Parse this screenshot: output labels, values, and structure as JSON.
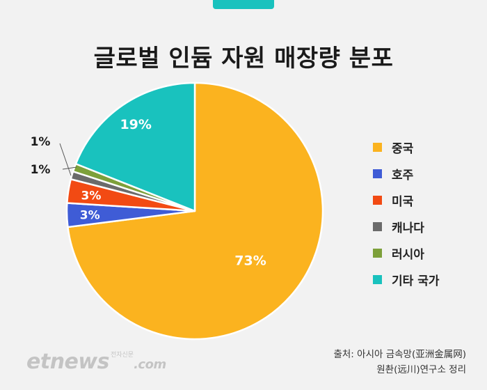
{
  "chart_data": {
    "type": "pie",
    "title": "글로벌 인듐 자원 매장량 분포",
    "slices": [
      {
        "label": "중국",
        "value": 73,
        "display": "73%",
        "color": "#fbb31f"
      },
      {
        "label": "호주",
        "value": 3,
        "display": "3%",
        "color": "#3f5cd6"
      },
      {
        "label": "미국",
        "value": 3,
        "display": "3%",
        "color": "#f24a13"
      },
      {
        "label": "캐나다",
        "value": 1,
        "display": "1%",
        "color": "#6b6b6b"
      },
      {
        "label": "러시아",
        "value": 1,
        "display": "1%",
        "color": "#7da03a"
      },
      {
        "label": "기타 국가",
        "value": 19,
        "display": "19%",
        "color": "#19c2be"
      }
    ],
    "legend_position": "right"
  },
  "source": {
    "line1": "출처:  아시아 금속망(亚洲金属网)",
    "line2": "원촨(远川)연구소 정리"
  },
  "logo": {
    "text": "etnews",
    "suffix": ".com",
    "sub": "전자신문"
  },
  "colors": {
    "background": "#f2f2f2",
    "accent": "#19c2be"
  }
}
